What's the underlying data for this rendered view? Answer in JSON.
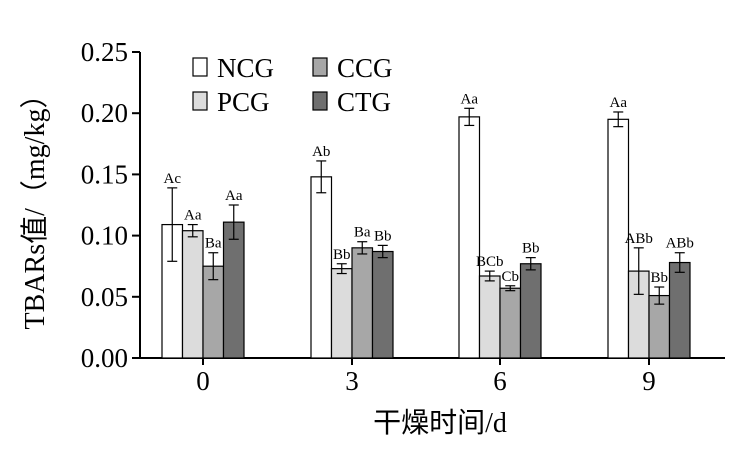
{
  "chart_data": {
    "type": "bar",
    "xlabel": "干燥时间/d",
    "ylabel": "TBARs值/（mg/kg）",
    "ylim": [
      0,
      0.25
    ],
    "yticks": [
      "0.00",
      "0.05",
      "0.10",
      "0.15",
      "0.20",
      "0.25"
    ],
    "categories": [
      "0",
      "3",
      "6",
      "9"
    ],
    "legend_placement": "top-left",
    "grid": false,
    "series": [
      {
        "name": "NCG",
        "color": "#ffffff",
        "values": [
          0.109,
          0.148,
          0.197,
          0.195
        ],
        "errors": [
          0.03,
          0.013,
          0.007,
          0.006
        ],
        "labels": [
          "Ac",
          "Ab",
          "Aa",
          "Aa"
        ]
      },
      {
        "name": "PCG",
        "color": "#dcdcdc",
        "values": [
          0.104,
          0.073,
          0.067,
          0.071
        ],
        "errors": [
          0.005,
          0.004,
          0.004,
          0.019
        ],
        "labels": [
          "Aa",
          "Bb",
          "BCb",
          "ABb"
        ]
      },
      {
        "name": "CCG",
        "color": "#a7a7a7",
        "values": [
          0.075,
          0.09,
          0.057,
          0.051
        ],
        "errors": [
          0.011,
          0.005,
          0.002,
          0.007
        ],
        "labels": [
          "Ba",
          "Ba",
          "Cb",
          "Bb"
        ]
      },
      {
        "name": "CTG",
        "color": "#6f6f6f",
        "values": [
          0.111,
          0.087,
          0.077,
          0.078
        ],
        "errors": [
          0.014,
          0.005,
          0.005,
          0.008
        ],
        "labels": [
          "Aa",
          "Bb",
          "Bb",
          "ABb"
        ]
      }
    ]
  }
}
